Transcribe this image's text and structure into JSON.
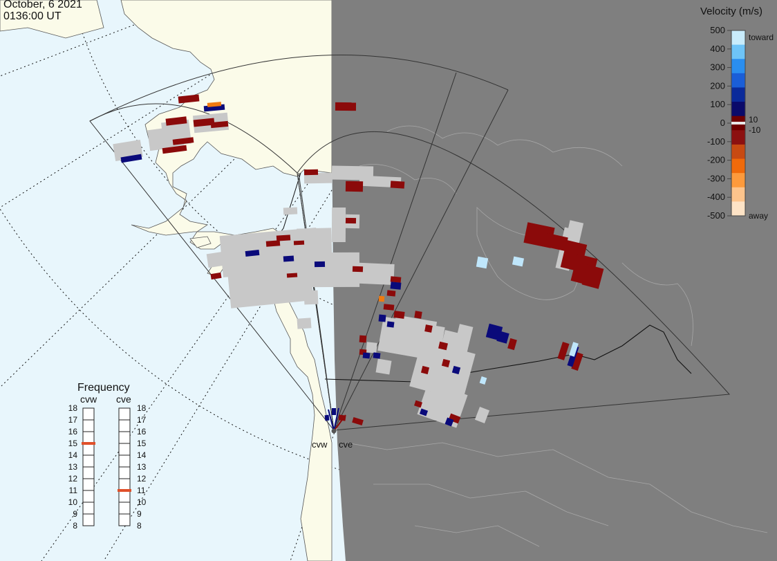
{
  "timestamp": {
    "date": "October, 6 2021",
    "time": "0136:00 UT"
  },
  "velocity_scale": {
    "title": "Velocity (m/s)",
    "ticks": [
      "500",
      "400",
      "300",
      "200",
      "100",
      "0",
      "-100",
      "-200",
      "-300",
      "-400",
      "-500"
    ],
    "small_ticks": [
      "10",
      "-10"
    ],
    "toward_label": "toward",
    "away_label": "away",
    "colors": [
      "#fde3c6",
      "#fdc48c",
      "#fd9a3c",
      "#f06a0a",
      "#c84a12",
      "#8c1010",
      "#700000",
      "#0a0a6a",
      "#0a2a9a",
      "#1a5ed8",
      "#2a8ef0",
      "#6ec4f8",
      "#c8ecfc"
    ]
  },
  "frequency_panel": {
    "title": "Frequency",
    "radars": [
      {
        "name": "cvw",
        "frequency": 15
      },
      {
        "name": "cve",
        "frequency": 11
      }
    ],
    "ticks": [
      "18",
      "17",
      "16",
      "15",
      "14",
      "13",
      "12",
      "11",
      "10",
      "9",
      "8"
    ],
    "marker_color": "#e0502a"
  },
  "sites": [
    {
      "name": "cvw"
    },
    {
      "name": "cve"
    }
  ],
  "colors": {
    "ocean": "#e8f6fc",
    "land_day": "#fbfbe9",
    "night": "#7f7f7f",
    "ground_scatter": "#c8c8c8",
    "away": "#8b0a0a",
    "toward": "#0a0a7a",
    "fast_toward": "#bfe6fb",
    "fast_away": "#f07a10"
  }
}
